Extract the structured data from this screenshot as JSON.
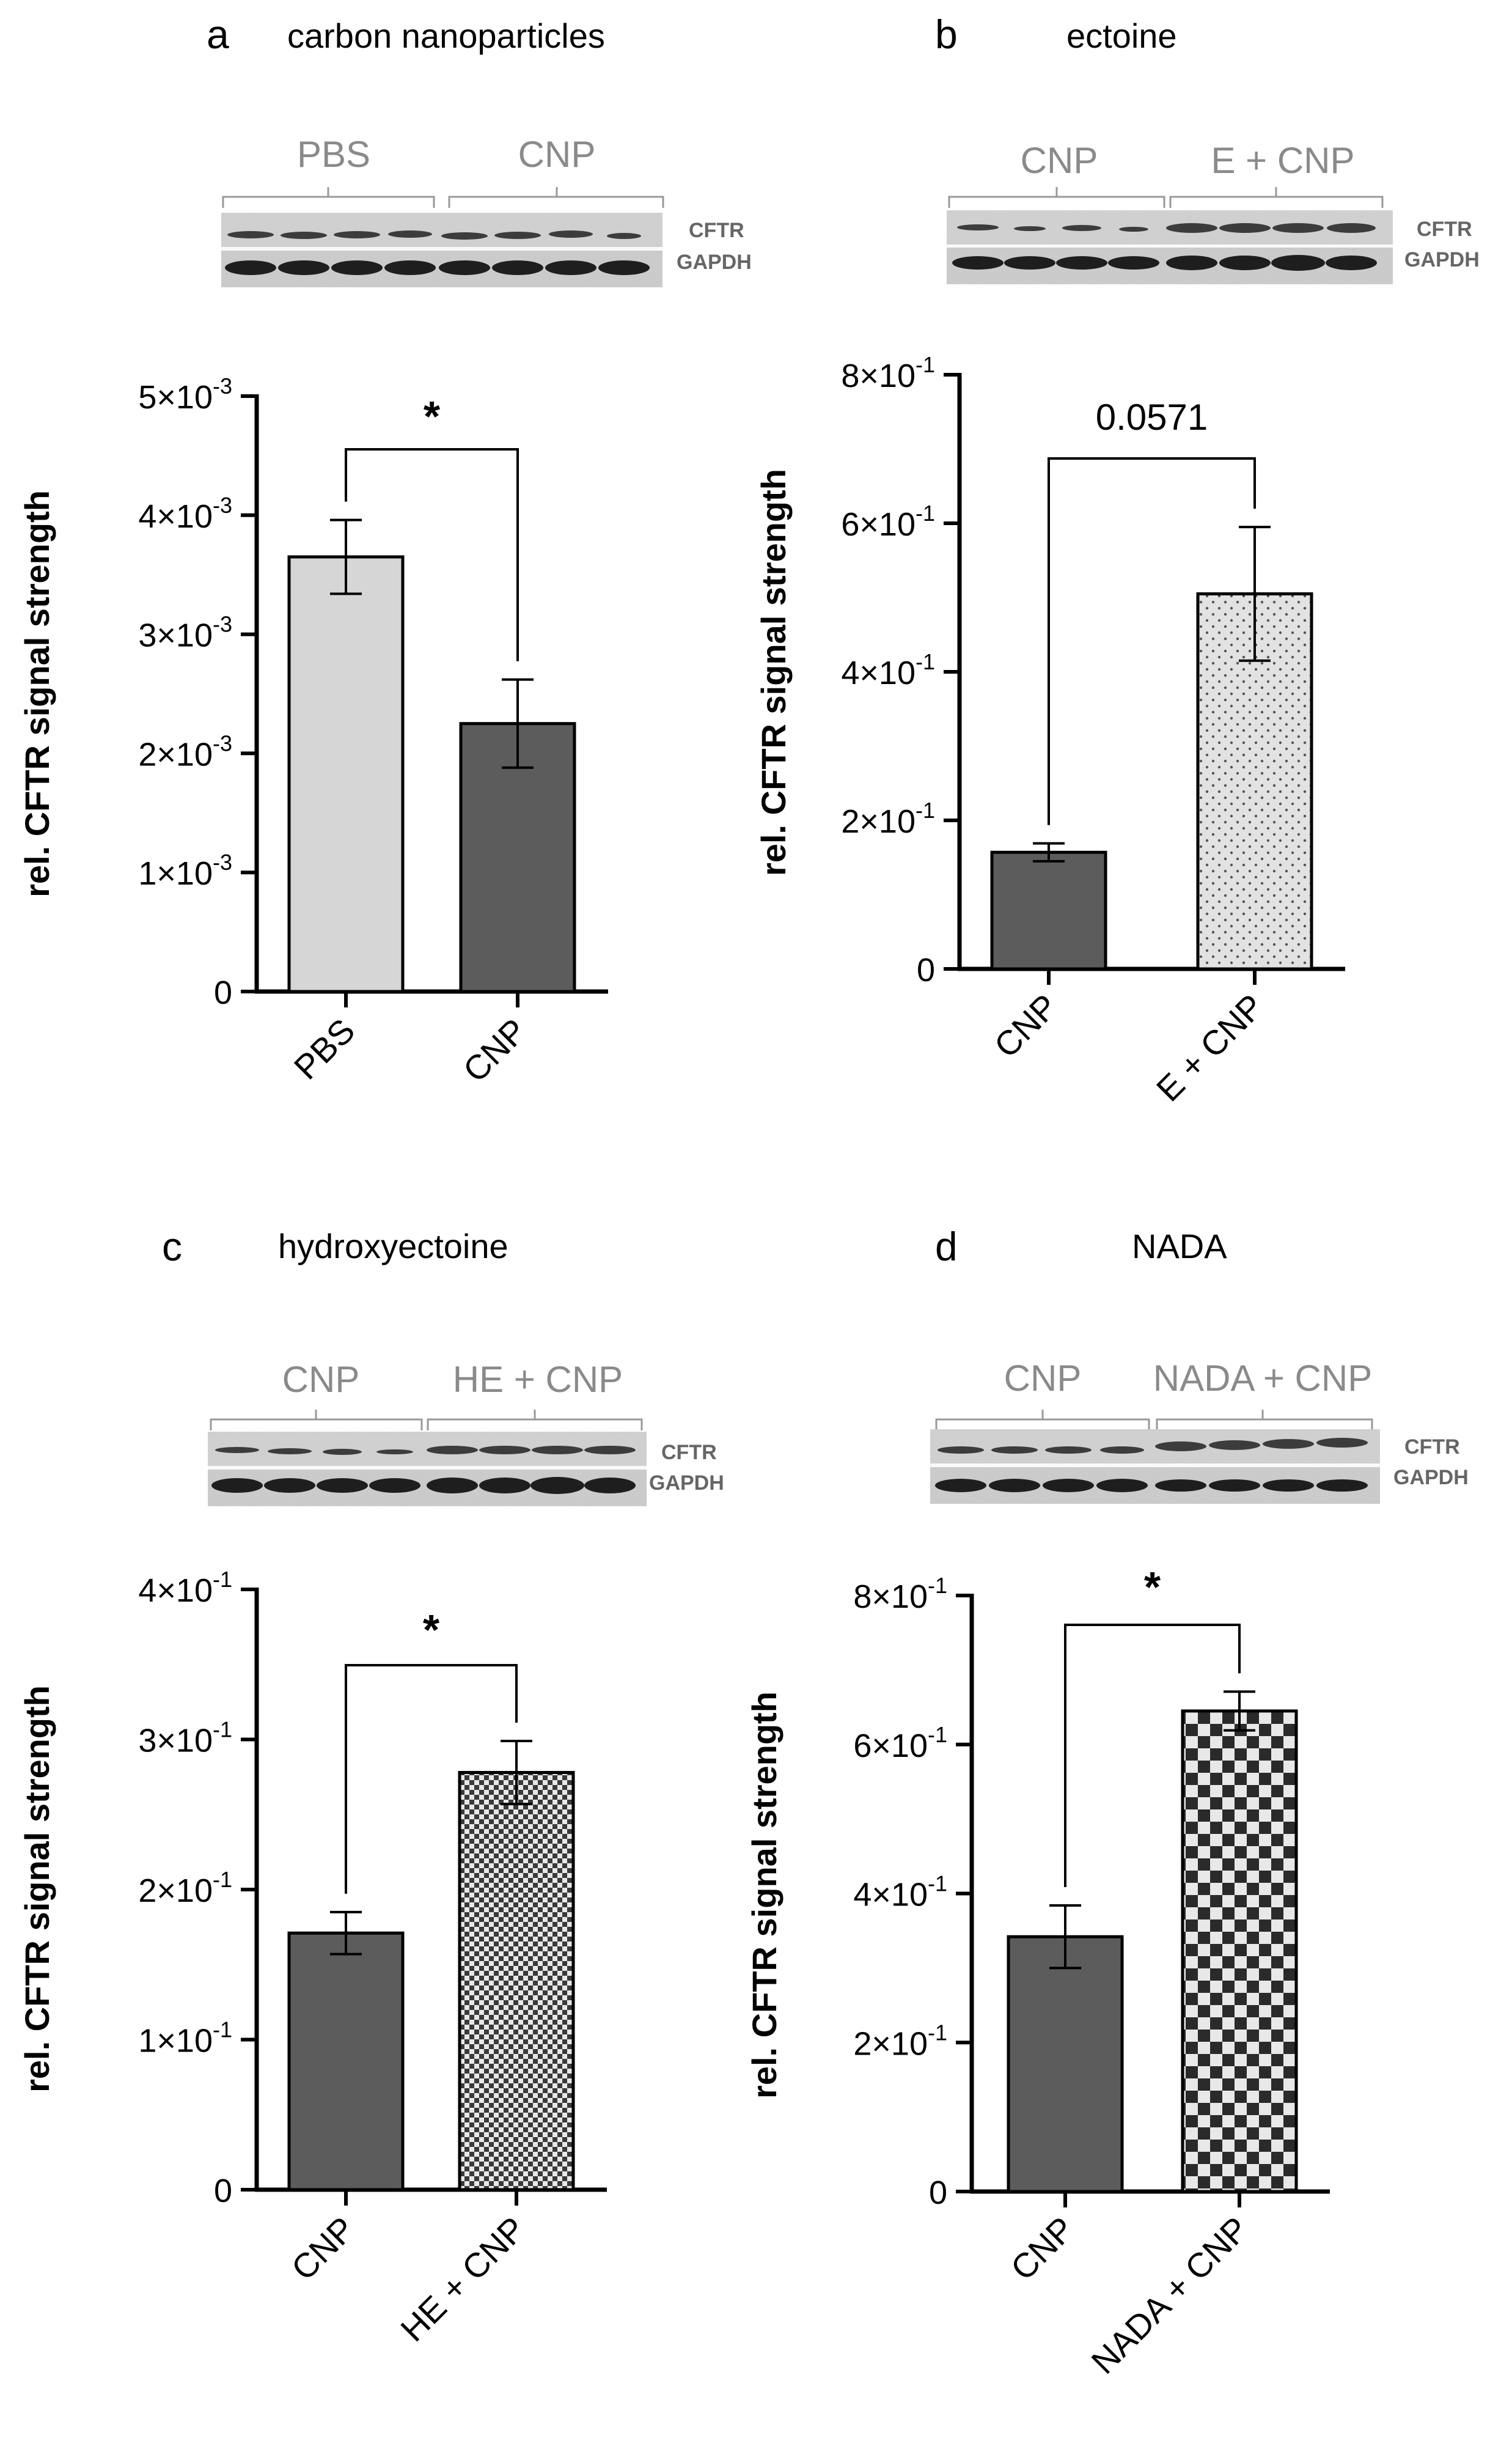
{
  "panels": [
    {
      "letter": "a",
      "title": "carbon nanoparticles",
      "blot": {
        "groups": [
          "PBS",
          "CNP"
        ],
        "bands": [
          "CFTR",
          "GAPDH"
        ]
      },
      "significance": "*",
      "chart_data": {
        "type": "bar",
        "categories": [
          "PBS",
          "CNP"
        ],
        "values": [
          0.00365,
          0.00225
        ],
        "errors": [
          0.00031,
          0.00037
        ],
        "patterns": [
          "light",
          "dark"
        ],
        "ylabel": "rel. CFTR signal strength",
        "ylim": [
          0,
          0.005
        ],
        "ticks": [
          0,
          0.001,
          0.002,
          0.003,
          0.004,
          0.005
        ],
        "tick_labels": [
          {
            "m": "0",
            "e": ""
          },
          {
            "m": "1×10",
            "e": "-3"
          },
          {
            "m": "2×10",
            "e": "-3"
          },
          {
            "m": "3×10",
            "e": "-3"
          },
          {
            "m": "4×10",
            "e": "-3"
          },
          {
            "m": "5×10",
            "e": "-3"
          }
        ]
      }
    },
    {
      "letter": "b",
      "title": "ectoine",
      "blot": {
        "groups": [
          "CNP",
          "E + CNP"
        ],
        "bands": [
          "CFTR",
          "GAPDH"
        ]
      },
      "significance": "0.0571",
      "chart_data": {
        "type": "bar",
        "categories": [
          "CNP",
          "E + CNP"
        ],
        "values": [
          0.157,
          0.505
        ],
        "errors": [
          0.012,
          0.09
        ],
        "patterns": [
          "dark",
          "dots"
        ],
        "ylabel": "rel. CFTR signal strength",
        "ylim": [
          0,
          0.8
        ],
        "ticks": [
          0,
          0.2,
          0.4,
          0.6,
          0.8
        ],
        "tick_labels": [
          {
            "m": "0",
            "e": ""
          },
          {
            "m": "2×10",
            "e": "-1"
          },
          {
            "m": "4×10",
            "e": "-1"
          },
          {
            "m": "6×10",
            "e": "-1"
          },
          {
            "m": "8×10",
            "e": "-1"
          }
        ]
      }
    },
    {
      "letter": "c",
      "title": "hydroxyectoine",
      "blot": {
        "groups": [
          "CNP",
          "HE + CNP"
        ],
        "bands": [
          "CFTR",
          "GAPDH"
        ]
      },
      "significance": "*",
      "chart_data": {
        "type": "bar",
        "categories": [
          "CNP",
          "HE + CNP"
        ],
        "values": [
          0.171,
          0.278
        ],
        "errors": [
          0.014,
          0.021
        ],
        "patterns": [
          "dark",
          "fine-check"
        ],
        "ylabel": "rel. CFTR signal strength",
        "ylim": [
          0,
          0.4
        ],
        "ticks": [
          0,
          0.1,
          0.2,
          0.3,
          0.4
        ],
        "tick_labels": [
          {
            "m": "0",
            "e": ""
          },
          {
            "m": "1×10",
            "e": "-1"
          },
          {
            "m": "2×10",
            "e": "-1"
          },
          {
            "m": "3×10",
            "e": "-1"
          },
          {
            "m": "4×10",
            "e": "-1"
          }
        ]
      }
    },
    {
      "letter": "d",
      "title": "NADA",
      "blot": {
        "groups": [
          "CNP",
          "NADA + CNP"
        ],
        "bands": [
          "CFTR",
          "GAPDH"
        ]
      },
      "significance": "*",
      "chart_data": {
        "type": "bar",
        "categories": [
          "CNP",
          "NADA + CNP"
        ],
        "values": [
          0.342,
          0.645
        ],
        "errors": [
          0.042,
          0.026
        ],
        "patterns": [
          "dark",
          "coarse-check"
        ],
        "ylabel": "rel. CFTR signal strength",
        "ylim": [
          0,
          0.8
        ],
        "ticks": [
          0,
          0.2,
          0.4,
          0.6,
          0.8
        ],
        "tick_labels": [
          {
            "m": "0",
            "e": ""
          },
          {
            "m": "2×10",
            "e": "-1"
          },
          {
            "m": "4×10",
            "e": "-1"
          },
          {
            "m": "6×10",
            "e": "-1"
          },
          {
            "m": "8×10",
            "e": "-1"
          }
        ]
      }
    }
  ]
}
